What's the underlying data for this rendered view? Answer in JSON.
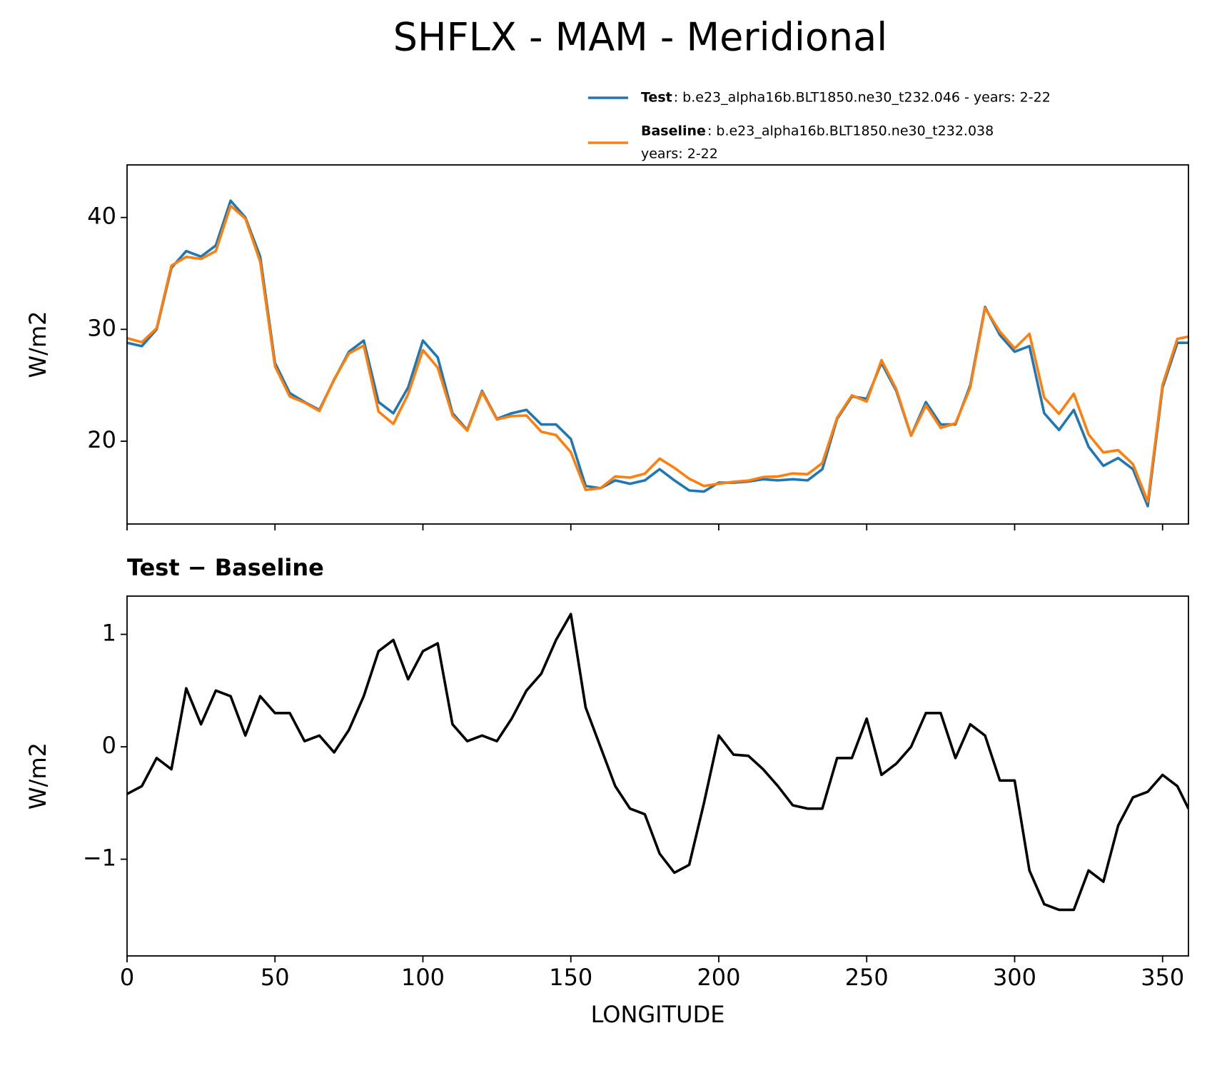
{
  "chart_data": [
    {
      "type": "line",
      "title": "SHFLX - MAM - Meridional",
      "ylabel": "W/m2",
      "x": [
        0,
        5,
        10,
        15,
        20,
        25,
        30,
        35,
        40,
        45,
        50,
        55,
        60,
        65,
        70,
        75,
        80,
        85,
        90,
        95,
        100,
        105,
        110,
        115,
        120,
        125,
        130,
        135,
        140,
        145,
        150,
        155,
        160,
        165,
        170,
        175,
        180,
        185,
        190,
        195,
        200,
        205,
        210,
        215,
        220,
        225,
        230,
        235,
        240,
        245,
        250,
        255,
        260,
        265,
        270,
        275,
        280,
        285,
        290,
        295,
        300,
        305,
        310,
        315,
        320,
        325,
        330,
        335,
        340,
        345,
        350,
        355,
        358.75
      ],
      "series": [
        {
          "name": "Test",
          "description": [
            ": b.e23_alpha16b.BLT1850.ne30_t232.046 - years: 2-22"
          ],
          "color": "#1f77b4",
          "values": [
            28.8,
            28.5,
            30,
            35.5,
            37,
            36.5,
            37.5,
            41.5,
            40,
            36.5,
            27,
            24.3,
            23.5,
            22.8,
            25.5,
            28,
            29,
            23.5,
            22.5,
            24.8,
            29,
            27.5,
            22.5,
            21,
            24.5,
            22,
            22.5,
            22.8,
            21.5,
            21.5,
            20.2,
            16,
            15.8,
            16.5,
            16.2,
            16.5,
            17.5,
            16.5,
            15.6,
            15.5,
            16.3,
            16.3,
            16.4,
            16.6,
            16.5,
            16.6,
            16.5,
            17.5,
            22,
            24,
            23.8,
            27,
            24.5,
            20.5,
            23.5,
            21.5,
            21.5,
            25,
            32,
            29.5,
            28,
            28.5,
            22.5,
            21,
            22.8,
            19.5,
            17.8,
            18.5,
            17.5,
            14.2,
            24.8,
            28.8,
            28.8
          ]
        },
        {
          "name": "Baseline",
          "description": [
            ": b.e23_alpha16b.BLT1850.ne30_t232.038",
            "years: 2-22"
          ],
          "color": "#ff7f0e",
          "values": [
            29.22,
            28.85,
            30.1,
            35.7,
            36.48,
            36.3,
            37,
            41.05,
            39.9,
            36.05,
            26.7,
            24,
            23.45,
            22.7,
            25.55,
            27.85,
            28.55,
            22.65,
            21.55,
            24.2,
            28.15,
            26.58,
            22.3,
            20.95,
            24.4,
            21.95,
            22.25,
            22.3,
            20.85,
            20.55,
            19.02,
            15.65,
            15.8,
            16.85,
            16.75,
            17.1,
            18.45,
            17.62,
            16.65,
            16,
            16.2,
            16.37,
            16.48,
            16.8,
            16.85,
            17.12,
            17.05,
            18.05,
            22.1,
            24.1,
            23.55,
            27.25,
            24.65,
            20.5,
            23.2,
            21.2,
            21.6,
            24.8,
            31.9,
            29.8,
            28.3,
            29.6,
            23.9,
            22.45,
            24.25,
            20.6,
            19,
            19.2,
            17.95,
            14.6,
            25.05,
            29.15,
            29.35
          ]
        }
      ],
      "xlim": [
        0,
        358.75
      ],
      "xticks": [
        0,
        50,
        100,
        150,
        200,
        250,
        300,
        350
      ],
      "xtick_labels": false,
      "ylim": [
        12.6,
        44.7
      ],
      "yticks": [
        20,
        30,
        40
      ],
      "legend": "top-right"
    },
    {
      "type": "line",
      "title": "Test − Baseline",
      "ylabel": "W/m2",
      "xlabel": "LONGITUDE",
      "x": [
        0,
        5,
        10,
        15,
        20,
        25,
        30,
        35,
        40,
        45,
        50,
        55,
        60,
        65,
        70,
        75,
        80,
        85,
        90,
        95,
        100,
        105,
        110,
        115,
        120,
        125,
        130,
        135,
        140,
        145,
        150,
        155,
        160,
        165,
        170,
        175,
        180,
        185,
        190,
        195,
        200,
        205,
        210,
        215,
        220,
        225,
        230,
        235,
        240,
        245,
        250,
        255,
        260,
        265,
        270,
        275,
        280,
        285,
        290,
        295,
        300,
        305,
        310,
        315,
        320,
        325,
        330,
        335,
        340,
        345,
        350,
        355,
        358.75
      ],
      "series": [
        {
          "color": "#000000",
          "values": [
            -0.42,
            -0.35,
            -0.1,
            -0.2,
            0.52,
            0.2,
            0.5,
            0.45,
            0.1,
            0.45,
            0.3,
            0.3,
            0.05,
            0.1,
            -0.05,
            0.15,
            0.45,
            0.85,
            0.95,
            0.6,
            0.85,
            0.92,
            0.2,
            0.05,
            0.1,
            0.05,
            0.25,
            0.5,
            0.65,
            0.95,
            1.18,
            0.35,
            0,
            -0.35,
            -0.55,
            -0.6,
            -0.95,
            -1.12,
            -1.05,
            -0.5,
            0.1,
            -0.07,
            -0.08,
            -0.2,
            -0.35,
            -0.52,
            -0.55,
            -0.55,
            -0.1,
            -0.1,
            0.25,
            -0.25,
            -0.15,
            0,
            0.3,
            0.3,
            -0.1,
            0.2,
            0.1,
            -0.3,
            -0.3,
            -1.1,
            -1.4,
            -1.45,
            -1.45,
            -1.1,
            -1.2,
            -0.7,
            -0.45,
            -0.4,
            -0.25,
            -0.35,
            -0.55
          ]
        }
      ],
      "xlim": [
        0,
        358.75
      ],
      "xticks": [
        0,
        50,
        100,
        150,
        200,
        250,
        300,
        350
      ],
      "xtick_labels": true,
      "ylim": [
        -1.86,
        1.34
      ],
      "yticks": [
        {
          "value": -1,
          "label": "−1"
        },
        0,
        1
      ]
    }
  ]
}
